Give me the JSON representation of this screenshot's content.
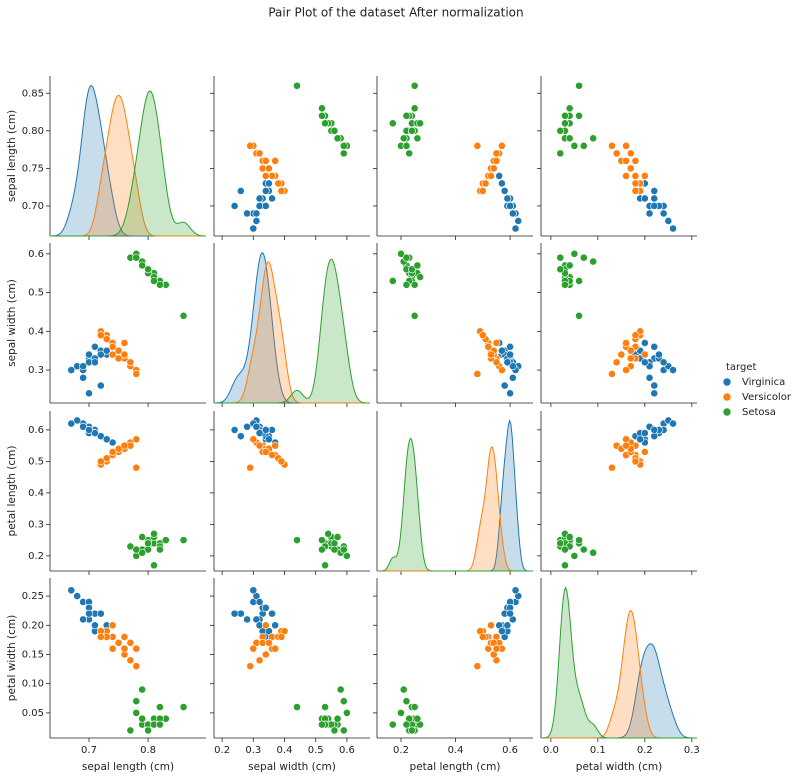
{
  "chart_data": {
    "type": "pair",
    "title": "Pair Plot of the dataset After normalization",
    "legend_title": "target",
    "axes": [
      {
        "label": "sepal length (cm)",
        "xlim": [
          0.634,
          0.898
        ],
        "ylim": [
          0.66,
          0.873
        ],
        "xticks": [
          0.7,
          0.8
        ],
        "yticks": [
          {
            "value": 0.7,
            "label": "0.70"
          },
          0.75,
          {
            "value": 0.8,
            "label": "0.80"
          },
          0.85
        ]
      },
      {
        "label": "sepal width (cm)",
        "xlim": [
          0.174,
          0.674
        ],
        "ylim": [
          0.215,
          0.628
        ],
        "xticks": [
          0.2,
          0.3,
          0.4,
          0.5,
          0.6
        ],
        "yticks": [
          0.3,
          0.4,
          0.5,
          0.6
        ]
      },
      {
        "label": "petal length (cm)",
        "xlim": [
          0.112,
          0.684
        ],
        "ylim": [
          0.152,
          0.66
        ],
        "xticks": [
          0.2,
          0.4,
          0.6
        ],
        "yticks": [
          0.2,
          0.3,
          0.4,
          0.5,
          0.6
        ]
      },
      {
        "label": "petal width (cm)",
        "xlim": [
          -0.021,
          0.311
        ],
        "ylim": [
          0.007,
          0.281
        ],
        "xticks": [
          {
            "value": 0,
            "label": "0.0"
          },
          0.1,
          0.2,
          0.3
        ],
        "yticks": [
          0.05,
          {
            "value": 0.1,
            "label": "0.10"
          },
          0.15,
          {
            "value": 0.2,
            "label": "0.20"
          },
          0.25
        ]
      }
    ],
    "series": [
      {
        "name": "Virginica",
        "color": "#1f77b4",
        "columns": [
          [
            0.71,
            0.7,
            0.72,
            0.69,
            0.73,
            0.7,
            0.68,
            0.71,
            0.72,
            0.69,
            0.74,
            0.7,
            0.71,
            0.67,
            0.72,
            0.7,
            0.69,
            0.71,
            0.73,
            0.7
          ],
          [
            0.33,
            0.32,
            0.35,
            0.3,
            0.34,
            0.33,
            0.31,
            0.36,
            0.34,
            0.28,
            0.37,
            0.32,
            0.33,
            0.3,
            0.26,
            0.34,
            0.31,
            0.32,
            0.35,
            0.24
          ],
          [
            0.6,
            0.61,
            0.58,
            0.62,
            0.57,
            0.59,
            0.63,
            0.6,
            0.58,
            0.61,
            0.56,
            0.6,
            0.59,
            0.62,
            0.58,
            0.6,
            0.61,
            0.59,
            0.57,
            0.6
          ],
          [
            0.22,
            0.21,
            0.19,
            0.24,
            0.2,
            0.23,
            0.25,
            0.22,
            0.18,
            0.21,
            0.2,
            0.24,
            0.19,
            0.26,
            0.22,
            0.23,
            0.21,
            0.2,
            0.19,
            0.22
          ]
        ]
      },
      {
        "name": "Versicolor",
        "color": "#ff7f0e",
        "columns": [
          [
            0.75,
            0.76,
            0.74,
            0.77,
            0.73,
            0.76,
            0.78,
            0.74,
            0.72,
            0.75,
            0.77,
            0.73,
            0.76,
            0.74,
            0.75,
            0.78,
            0.72,
            0.75,
            0.76,
            0.74
          ],
          [
            0.35,
            0.33,
            0.37,
            0.31,
            0.39,
            0.34,
            0.3,
            0.36,
            0.4,
            0.35,
            0.32,
            0.38,
            0.34,
            0.36,
            0.33,
            0.29,
            0.39,
            0.35,
            0.37,
            0.34
          ],
          [
            0.53,
            0.55,
            0.52,
            0.56,
            0.5,
            0.54,
            0.57,
            0.52,
            0.49,
            0.53,
            0.55,
            0.51,
            0.54,
            0.52,
            0.53,
            0.48,
            0.5,
            0.54,
            0.55,
            0.53
          ],
          [
            0.17,
            0.18,
            0.16,
            0.17,
            0.19,
            0.15,
            0.16,
            0.18,
            0.19,
            0.17,
            0.14,
            0.18,
            0.15,
            0.16,
            0.17,
            0.13,
            0.18,
            0.17,
            0.16,
            0.2
          ]
        ]
      },
      {
        "name": "Setosa",
        "color": "#2ca02c",
        "columns": [
          [
            0.8,
            0.81,
            0.79,
            0.8,
            0.78,
            0.81,
            0.82,
            0.8,
            0.77,
            0.83,
            0.81,
            0.79,
            0.8,
            0.82,
            0.78,
            0.86,
            0.81,
            0.8,
            0.79,
            0.82
          ],
          [
            0.55,
            0.54,
            0.57,
            0.56,
            0.6,
            0.55,
            0.53,
            0.56,
            0.59,
            0.52,
            0.54,
            0.58,
            0.55,
            0.53,
            0.59,
            0.44,
            0.53,
            0.56,
            0.57,
            0.52
          ],
          [
            0.23,
            0.24,
            0.22,
            0.25,
            0.2,
            0.26,
            0.24,
            0.22,
            0.23,
            0.25,
            0.27,
            0.21,
            0.24,
            0.23,
            0.22,
            0.25,
            0.17,
            0.24,
            0.26,
            0.22
          ],
          [
            0.03,
            0.04,
            0.03,
            0.02,
            0.05,
            0.03,
            0.06,
            0.03,
            0.02,
            0.04,
            0.03,
            0.09,
            0.03,
            0.04,
            0.07,
            0.06,
            0.03,
            0.02,
            0.04,
            0.03
          ]
        ]
      }
    ]
  }
}
